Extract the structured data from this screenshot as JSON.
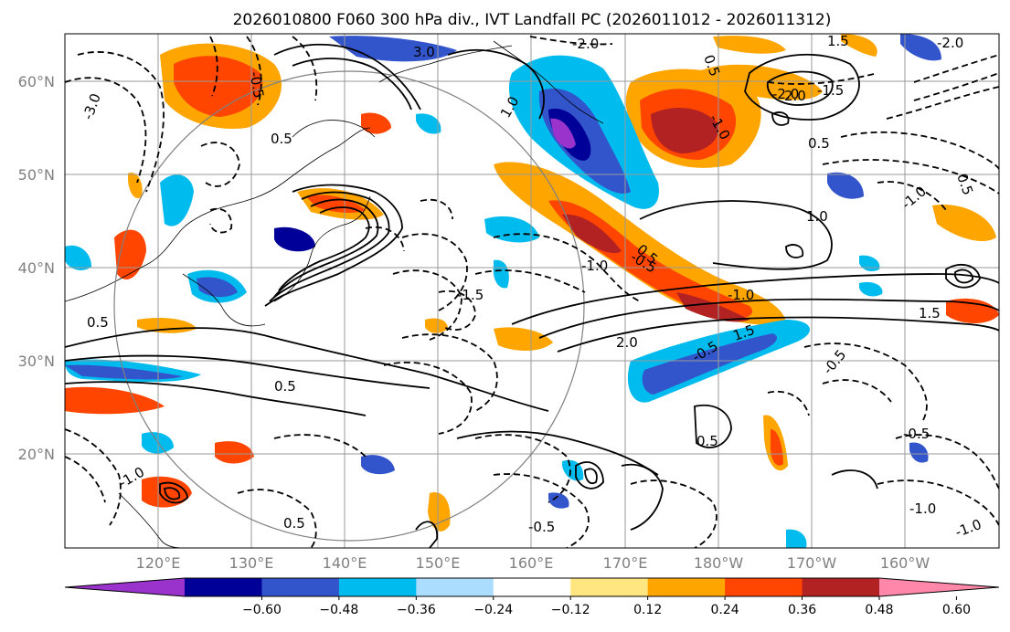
{
  "title": "2026010800 F060 300 hPa div., IVT Landfall PC (2026011012 - 2026011312)",
  "map": {
    "lat_labels": [
      "60°N",
      "50°N",
      "40°N",
      "30°N",
      "20°N"
    ],
    "lon_labels": [
      "120°E",
      "130°E",
      "140°E",
      "150°E",
      "160°E",
      "170°E",
      "180°W",
      "170°W",
      "160°W"
    ],
    "contour_labels": [
      "-3.0",
      "-0.5",
      "0.5",
      "-2.0",
      "3.0",
      "1.0",
      "0.5",
      "-1.0",
      "-1.5",
      "2.0",
      "-2.0",
      "1.5",
      "0.5",
      "-1.0",
      "0.5",
      "-2.0",
      "1.0",
      "-1.0",
      "0.5",
      "-0.5",
      "-1.0",
      "1.5",
      "-1.5",
      "2.0",
      "1.5",
      "-0.5",
      "0.5",
      "-1.0",
      "-1.0",
      "0.5",
      "-0.5",
      "-1.0",
      "0.5",
      "-0.5",
      "-0.5",
      "0.5"
    ]
  },
  "colorbar": {
    "tick_labels": [
      "−0.60",
      "−0.48",
      "−0.36",
      "−0.24",
      "−0.12",
      "0.12",
      "0.24",
      "0.36",
      "0.48",
      "0.60"
    ],
    "colors": [
      "#9933cc",
      "#000099",
      "#3355cc",
      "#00bbee",
      "#aaddff",
      "#ffffff",
      "#ffe680",
      "#ffa500",
      "#ff4500",
      "#b22222",
      "#ff88aa"
    ]
  }
}
